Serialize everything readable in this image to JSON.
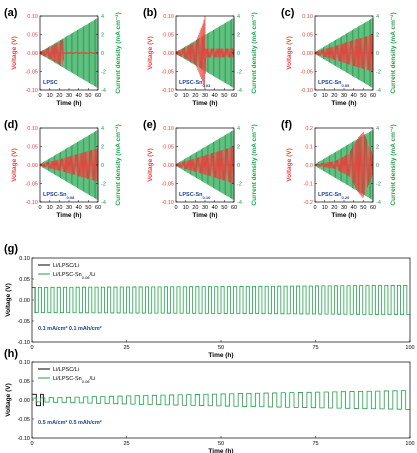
{
  "colors": {
    "voltage": "#e8423f",
    "current": "#1fa14a",
    "sample_label": "#1f3f9a",
    "li_li": "#000000",
    "sn_li": "#1fa14a"
  },
  "chart_data": [
    {
      "panel": "(a)",
      "type": "line",
      "sample_label": "LPSC",
      "sample_sub": "",
      "xlabel": "Time (h)",
      "ylabel": "Voltage (V)",
      "y2label": "Current density (mA cm⁻²)",
      "xlim": [
        0,
        60
      ],
      "xticks": [
        0,
        10,
        20,
        30,
        40,
        50,
        60
      ],
      "ylim": [
        -0.1,
        0.1
      ],
      "yticks": [
        "0.10",
        "0.05",
        "0.00",
        "-0.05",
        "-0.10"
      ],
      "y2lim": [
        -4,
        4
      ],
      "y2ticks": [
        "4",
        "2",
        "0",
        "-2",
        "-4"
      ],
      "series": [
        {
          "name": "",
          "axis": "left",
          "color": "#e8423f",
          "x": [
            0,
            10,
            20,
            24,
            25,
            60
          ],
          "y": [
            0.004,
            0.015,
            0.03,
            0.038,
            0.002,
            0.002
          ]
        },
        {
          "name": "",
          "axis": "right",
          "color": "#1fa14a",
          "x": [
            0,
            60
          ],
          "y": [
            0.1,
            3.8
          ]
        }
      ]
    },
    {
      "panel": "(b)",
      "type": "line",
      "sample_label": "LPSC-Sn",
      "sample_sub": "0.03",
      "xlabel": "Time (h)",
      "ylabel": "Voltage (V)",
      "y2label": "Current density (mA cm⁻²)",
      "xlim": [
        0,
        60
      ],
      "xticks": [
        0,
        10,
        20,
        30,
        40,
        50,
        60
      ],
      "ylim": [
        -0.1,
        0.1
      ],
      "yticks": [
        "0.10",
        "0.05",
        "0.00",
        "-0.05",
        "-0.10"
      ],
      "y2lim": [
        -4,
        4
      ],
      "y2ticks": [
        "4",
        "2",
        "0",
        "-2",
        "-4"
      ],
      "series": [
        {
          "name": "",
          "axis": "left",
          "color": "#e8423f",
          "x": [
            0,
            10,
            20,
            28,
            30,
            31,
            60
          ],
          "y": [
            0.004,
            0.015,
            0.03,
            0.08,
            0.1,
            0.012,
            0.012
          ]
        },
        {
          "name": "",
          "axis": "right",
          "color": "#1fa14a",
          "x": [
            0,
            60
          ],
          "y": [
            0.1,
            3.8
          ]
        }
      ]
    },
    {
      "panel": "(c)",
      "type": "line",
      "sample_label": "LPSC-Sn",
      "sample_sub": "0.05",
      "xlabel": "Time (h)",
      "ylabel": "Voltage (V)",
      "y2label": "Current density (mA cm⁻²)",
      "xlim": [
        0,
        60
      ],
      "xticks": [
        0,
        10,
        20,
        30,
        40,
        50,
        60
      ],
      "ylim": [
        -0.1,
        0.1
      ],
      "yticks": [
        "0.10",
        "0.05",
        "0.00",
        "-0.05",
        "-0.10"
      ],
      "y2lim": [
        -4,
        4
      ],
      "y2ticks": [
        "4",
        "2",
        "0",
        "-2",
        "-4"
      ],
      "series": [
        {
          "name": "",
          "axis": "left",
          "color": "#e8423f",
          "x": [
            0,
            20,
            40,
            60
          ],
          "y": [
            0.003,
            0.018,
            0.035,
            0.05
          ]
        },
        {
          "name": "",
          "axis": "right",
          "color": "#1fa14a",
          "x": [
            0,
            60
          ],
          "y": [
            0.1,
            3.8
          ]
        }
      ]
    },
    {
      "panel": "(d)",
      "type": "line",
      "sample_label": "LPSC-Sn",
      "sample_sub": "0.08",
      "xlabel": "Time (h)",
      "ylabel": "Voltage (V)",
      "y2label": "Current density (mA cm⁻²)",
      "xlim": [
        0,
        60
      ],
      "xticks": [
        0,
        10,
        20,
        30,
        40,
        50,
        60
      ],
      "ylim": [
        -0.1,
        0.1
      ],
      "yticks": [
        "0.10",
        "0.05",
        "0.00",
        "-0.05",
        "-0.10"
      ],
      "y2lim": [
        -4,
        4
      ],
      "y2ticks": [
        "4",
        "2",
        "0",
        "-2",
        "-4"
      ],
      "series": [
        {
          "name": "",
          "axis": "left",
          "color": "#e8423f",
          "x": [
            0,
            20,
            40,
            60
          ],
          "y": [
            0.003,
            0.015,
            0.03,
            0.045
          ]
        },
        {
          "name": "",
          "axis": "right",
          "color": "#1fa14a",
          "x": [
            0,
            60
          ],
          "y": [
            0.1,
            3.8
          ]
        }
      ]
    },
    {
      "panel": "(e)",
      "type": "line",
      "sample_label": "LPSC-Sn",
      "sample_sub": "0.10",
      "xlabel": "Time (h)",
      "ylabel": "Voltage (V)",
      "y2label": "Current density (mA cm⁻²)",
      "xlim": [
        0,
        60
      ],
      "xticks": [
        0,
        10,
        20,
        30,
        40,
        50,
        60
      ],
      "ylim": [
        -0.1,
        0.1
      ],
      "yticks": [
        "0.10",
        "0.05",
        "0.00",
        "-0.05",
        "-0.10"
      ],
      "y2lim": [
        -4,
        4
      ],
      "y2ticks": [
        "4",
        "2",
        "0",
        "-2",
        "-4"
      ],
      "series": [
        {
          "name": "",
          "axis": "left",
          "color": "#e8423f",
          "x": [
            0,
            20,
            40,
            60
          ],
          "y": [
            0.003,
            0.018,
            0.034,
            0.05
          ]
        },
        {
          "name": "",
          "axis": "right",
          "color": "#1fa14a",
          "x": [
            0,
            60
          ],
          "y": [
            0.1,
            3.8
          ]
        }
      ]
    },
    {
      "panel": "(f)",
      "type": "line",
      "sample_label": "LPSC-Sn",
      "sample_sub": "0.20",
      "xlabel": "Time (h)",
      "ylabel": "Voltage (V)",
      "y2label": "Current density (mA cm⁻²)",
      "xlim": [
        0,
        60
      ],
      "xticks": [
        0,
        10,
        20,
        30,
        40,
        50,
        60
      ],
      "ylim": [
        -0.2,
        0.2
      ],
      "yticks": [
        "0.2",
        "0.1",
        "0.0",
        "-0.1",
        "-0.2"
      ],
      "y2lim": [
        -4,
        4
      ],
      "y2ticks": [
        "4",
        "2",
        "0",
        "-2",
        "-4"
      ],
      "series": [
        {
          "name": "",
          "axis": "left",
          "color": "#e8423f",
          "x": [
            0,
            20,
            35,
            45,
            50,
            60
          ],
          "y": [
            0.003,
            0.02,
            0.06,
            0.15,
            0.18,
            0.05
          ]
        },
        {
          "name": "",
          "axis": "right",
          "color": "#1fa14a",
          "x": [
            0,
            60
          ],
          "y": [
            0.1,
            3.8
          ]
        }
      ]
    },
    {
      "panel": "(g)",
      "type": "line",
      "xlabel": "Time (h)",
      "ylabel": "Voltage (V)",
      "xlim": [
        0,
        100
      ],
      "xticks": [
        0,
        25,
        50,
        75,
        100
      ],
      "ylim": [
        -0.1,
        0.1
      ],
      "yticks": [
        "0.10",
        "0.05",
        "0.00",
        "-0.05",
        "-0.10"
      ],
      "annotation": "0.1 mA/cm²  0.1 mAh/cm²",
      "legend_position": "top-left",
      "series": [
        {
          "name": "Li/LPSC/Li",
          "sub": "",
          "color": "#000000",
          "x": [
            0,
            1
          ],
          "y": [
            0.03,
            0.03
          ]
        },
        {
          "name": "Li/LPSC-Sn",
          "sub": "0.08",
          "suffix": "/Li",
          "color": "#1fa14a",
          "x": [
            0,
            50,
            100
          ],
          "y": [
            0.03,
            0.032,
            0.035
          ]
        }
      ]
    },
    {
      "panel": "(h)",
      "type": "line",
      "xlabel": "Time (h)",
      "ylabel": "Voltage (V)",
      "xlim": [
        0,
        100
      ],
      "xticks": [
        0,
        25,
        50,
        75,
        100
      ],
      "ylim": [
        -0.1,
        0.1
      ],
      "yticks": [
        "0.10",
        "0.05",
        "0.00",
        "-0.05",
        "-0.10"
      ],
      "annotation": "0.5 mA/cm²  0.5 mAh/cm²",
      "legend_position": "top-left",
      "series": [
        {
          "name": "Li/LPSC/Li",
          "sub": "",
          "color": "#000000",
          "x": [
            0,
            3
          ],
          "y": [
            0.015,
            0.015
          ]
        },
        {
          "name": "Li/LPSC-Sn",
          "sub": "0.08",
          "suffix": "/Li",
          "color": "#1fa14a",
          "x": [
            0,
            30,
            60,
            100
          ],
          "y": [
            0.005,
            0.012,
            0.018,
            0.025
          ]
        }
      ]
    }
  ]
}
